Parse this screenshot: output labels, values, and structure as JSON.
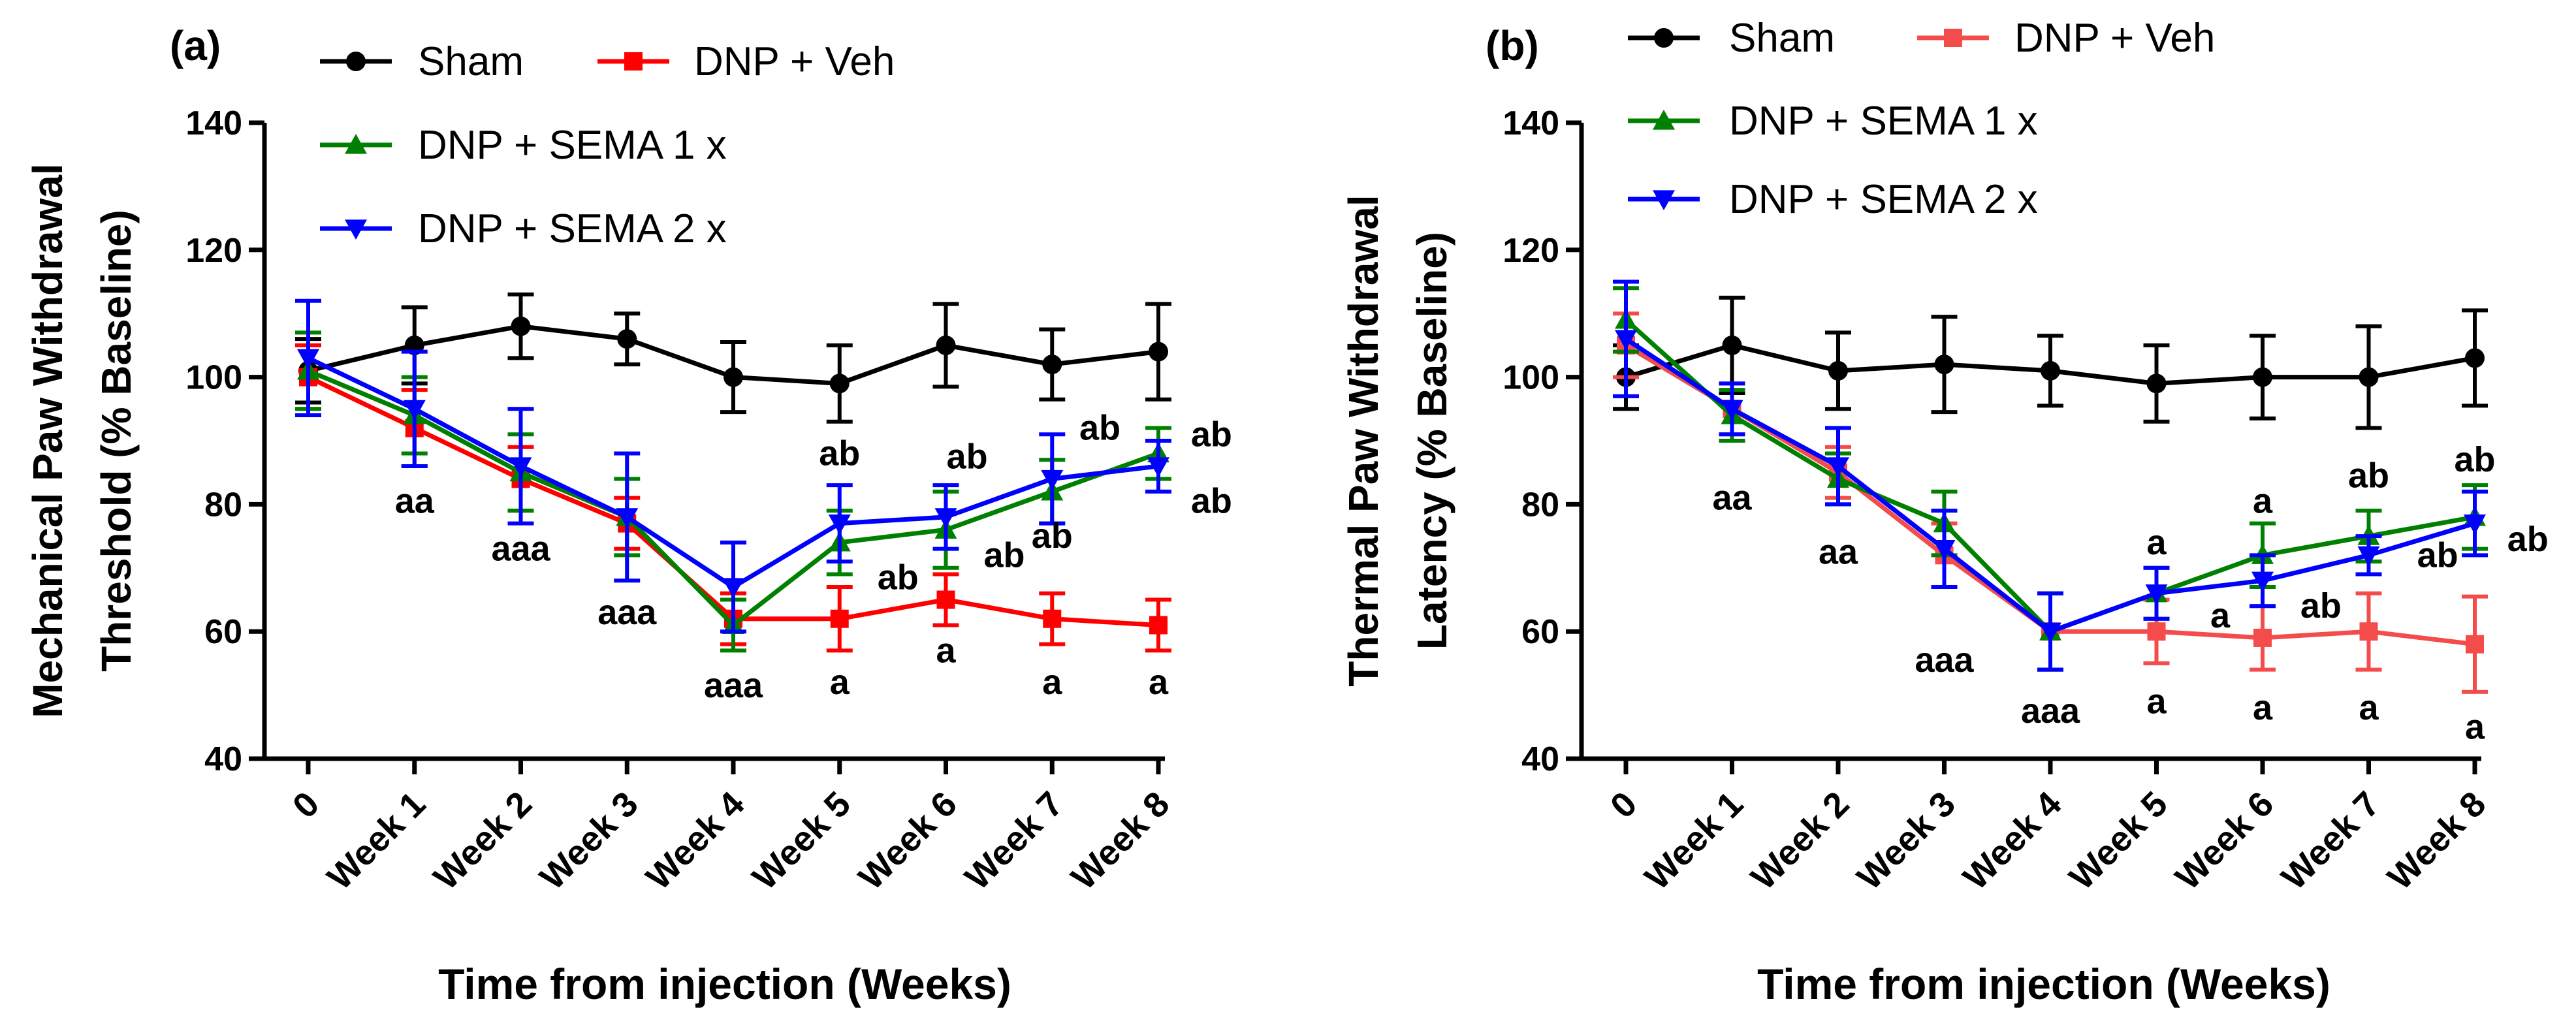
{
  "chart_data": [
    {
      "panel_label": "(a)",
      "type": "line",
      "categories": [
        "0",
        "Week 1",
        "Week 2",
        "Week 3",
        "Week 4",
        "Week 5",
        "Week 6",
        "Week 7",
        "Week 8"
      ],
      "ylim": [
        40,
        140
      ],
      "yticks": [
        "40",
        "60",
        "80",
        "100",
        "120",
        "140"
      ],
      "ylabel_line1": "Mechanical Paw Withdrawal",
      "ylabel_line2": "Threshold (% Baseline)",
      "xlabel": "Time from injection (Weeks)",
      "series": [
        {
          "name": "Sham",
          "color": "#000000",
          "marker": "circle",
          "values": [
            101,
            105,
            108,
            106,
            100,
            99,
            105,
            102,
            104
          ],
          "errors": [
            5,
            6,
            5,
            4,
            5.5,
            6,
            6.5,
            5.5,
            7.5
          ]
        },
        {
          "name": "DNP + Veh",
          "color": "#ff0000",
          "marker": "square",
          "values": [
            100,
            92,
            84,
            77,
            62,
            62,
            65,
            62,
            61
          ],
          "errors": [
            5,
            6,
            5,
            4,
            4,
            5,
            4,
            4,
            4
          ]
        },
        {
          "name": "DNP + SEMA 1 x",
          "color": "#008000",
          "marker": "triangle-up",
          "values": [
            101,
            94,
            85,
            78,
            61,
            74,
            76,
            82,
            88
          ],
          "errors": [
            6,
            6,
            6,
            6,
            4,
            5,
            6,
            5,
            4
          ]
        },
        {
          "name": "DNP + SEMA 2 x",
          "color": "#0000ff",
          "marker": "triangle-down",
          "values": [
            103,
            95,
            86,
            78,
            67,
            77,
            78,
            84,
            86
          ],
          "errors": [
            9,
            9,
            9,
            10,
            7,
            6,
            5,
            7,
            4
          ]
        }
      ],
      "annotations": [
        {
          "text": "aa",
          "x": 1,
          "y": 80.5
        },
        {
          "text": "aaa",
          "x": 2,
          "y": 73
        },
        {
          "text": "aaa",
          "x": 3,
          "y": 63
        },
        {
          "text": "aaa",
          "x": 4,
          "y": 51.5
        },
        {
          "text": "ab",
          "x": 5,
          "y": 88
        },
        {
          "text": "a",
          "x": 5,
          "y": 52
        },
        {
          "text": "ab",
          "x": 5.55,
          "y": 68.5
        },
        {
          "text": "ab",
          "x": 6.2,
          "y": 87.5
        },
        {
          "text": "a",
          "x": 6,
          "y": 57
        },
        {
          "text": "ab",
          "x": 6.55,
          "y": 72
        },
        {
          "text": "ab",
          "x": 7.45,
          "y": 92
        },
        {
          "text": "a",
          "x": 7,
          "y": 52
        },
        {
          "text": "ab",
          "x": 7,
          "y": 75
        },
        {
          "text": "ab",
          "x": 8.5,
          "y": 91
        },
        {
          "text": "ab",
          "x": 8.5,
          "y": 80.5
        },
        {
          "text": "a",
          "x": 8,
          "y": 52
        }
      ],
      "legend": [
        {
          "label": "Sham",
          "series": 0
        },
        {
          "label": "DNP + Veh",
          "series": 1
        },
        {
          "label": "DNP + SEMA 1 x",
          "series": 2
        },
        {
          "label": "DNP + SEMA 2 x",
          "series": 3
        }
      ]
    },
    {
      "panel_label": "(b)",
      "type": "line",
      "categories": [
        "0",
        "Week 1",
        "Week 2",
        "Week 3",
        "Week 4",
        "Week 5",
        "Week 6",
        "Week 7",
        "Week 8"
      ],
      "ylim": [
        40,
        140
      ],
      "yticks": [
        "40",
        "60",
        "80",
        "100",
        "120",
        "140"
      ],
      "ylabel_line1": "Thermal Paw Withdrawal",
      "ylabel_line2": "Latency (% Baseline)",
      "xlabel": "Time from injection (Weeks)",
      "series": [
        {
          "name": "Sham",
          "color": "#000000",
          "marker": "circle",
          "values": [
            100,
            105,
            101,
            102,
            101,
            99,
            100,
            100,
            103
          ],
          "errors": [
            5,
            7.5,
            6,
            7.5,
            5.5,
            6,
            6.5,
            8,
            7.5
          ]
        },
        {
          "name": "DNP + Veh",
          "color": "#f44b4b",
          "marker": "square",
          "values": [
            105,
            95,
            85,
            72,
            60,
            60,
            59,
            60,
            58
          ],
          "errors": [
            5,
            4,
            4,
            5,
            6,
            5,
            5,
            6,
            7.5
          ]
        },
        {
          "name": "DNP + SEMA 1 x",
          "color": "#008000",
          "marker": "triangle-up",
          "values": [
            109,
            94,
            84,
            77,
            60,
            66,
            72,
            75,
            78
          ],
          "errors": [
            5,
            4,
            4,
            5,
            6,
            4,
            5,
            4,
            5
          ]
        },
        {
          "name": "DNP + SEMA 2 x",
          "color": "#0000ff",
          "marker": "triangle-down",
          "values": [
            106,
            95,
            86,
            73,
            60,
            66,
            68,
            72,
            77
          ],
          "errors": [
            9,
            4,
            6,
            6,
            6,
            4,
            4,
            3,
            5
          ]
        }
      ],
      "annotations": [
        {
          "text": "aa",
          "x": 1,
          "y": 81
        },
        {
          "text": "aa",
          "x": 2,
          "y": 72.5
        },
        {
          "text": "aaa",
          "x": 3,
          "y": 55.5
        },
        {
          "text": "aaa",
          "x": 4,
          "y": 47.5
        },
        {
          "text": "a",
          "x": 5,
          "y": 74
        },
        {
          "text": "a",
          "x": 5,
          "y": 49
        },
        {
          "text": "a",
          "x": 5.6,
          "y": 62.5
        },
        {
          "text": "a",
          "x": 6,
          "y": 80.5
        },
        {
          "text": "a",
          "x": 6,
          "y": 48
        },
        {
          "text": "ab",
          "x": 6.55,
          "y": 64
        },
        {
          "text": "ab",
          "x": 7,
          "y": 84.5
        },
        {
          "text": "a",
          "x": 7,
          "y": 48
        },
        {
          "text": "ab",
          "x": 7.65,
          "y": 72
        },
        {
          "text": "ab",
          "x": 8,
          "y": 87
        },
        {
          "text": "ab",
          "x": 8.5,
          "y": 74.5
        },
        {
          "text": "a",
          "x": 8,
          "y": 45
        }
      ],
      "legend": [
        {
          "label": "Sham",
          "series": 0
        },
        {
          "label": "DNP + Veh",
          "series": 1
        },
        {
          "label": "DNP + SEMA 1 x",
          "series": 2
        },
        {
          "label": "DNP + SEMA 2 x",
          "series": 3
        }
      ]
    }
  ]
}
